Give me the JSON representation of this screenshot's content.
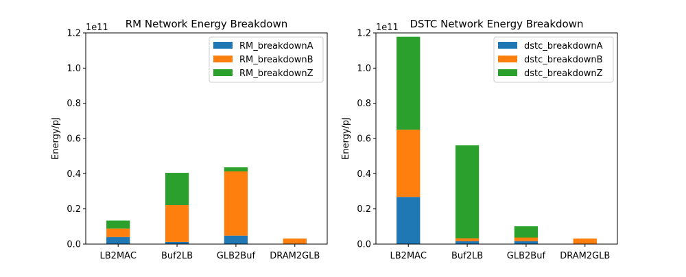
{
  "chart_data": [
    {
      "type": "bar",
      "stacked": true,
      "title": "RM Network Energy Breakdown",
      "ylabel": "Energy/pJ",
      "xlabel": "",
      "offset_text": "1e11",
      "categories": [
        "LB2MAC",
        "Buf2LB",
        "GLB2Buf",
        "DRAM2GLB"
      ],
      "ylim": [
        0,
        1.2
      ],
      "yticks": [
        "0.0",
        "0.2",
        "0.4",
        "0.6",
        "0.8",
        "1.0",
        "1.2"
      ],
      "legend_position": "upper right",
      "series": [
        {
          "name": "RM_breakdownA",
          "color": "#1f77b4",
          "values": [
            0.04,
            0.012,
            0.048,
            0.0
          ]
        },
        {
          "name": "RM_breakdownB",
          "color": "#ff7f0e",
          "values": [
            0.048,
            0.21,
            0.365,
            0.032
          ]
        },
        {
          "name": "RM_breakdownZ",
          "color": "#2ca02c",
          "values": [
            0.046,
            0.183,
            0.023,
            0.0
          ]
        }
      ]
    },
    {
      "type": "bar",
      "stacked": true,
      "title": "DSTC Network Energy Breakdown",
      "ylabel": "Energy/pJ",
      "xlabel": "",
      "offset_text": "1e11",
      "categories": [
        "LB2MAC",
        "Buf2LB",
        "GLB2Buf",
        "DRAM2GLB"
      ],
      "ylim": [
        0,
        1.2
      ],
      "yticks": [
        "0.0",
        "0.2",
        "0.4",
        "0.6",
        "0.8",
        "1.0",
        "1.2"
      ],
      "legend_position": "upper right",
      "series": [
        {
          "name": "dstc_breakdownA",
          "color": "#1f77b4",
          "values": [
            0.268,
            0.017,
            0.017,
            0.0
          ]
        },
        {
          "name": "dstc_breakdownB",
          "color": "#ff7f0e",
          "values": [
            0.382,
            0.016,
            0.02,
            0.032
          ]
        },
        {
          "name": "dstc_breakdownZ",
          "color": "#2ca02c",
          "values": [
            0.528,
            0.528,
            0.064,
            0.0
          ]
        }
      ]
    }
  ]
}
